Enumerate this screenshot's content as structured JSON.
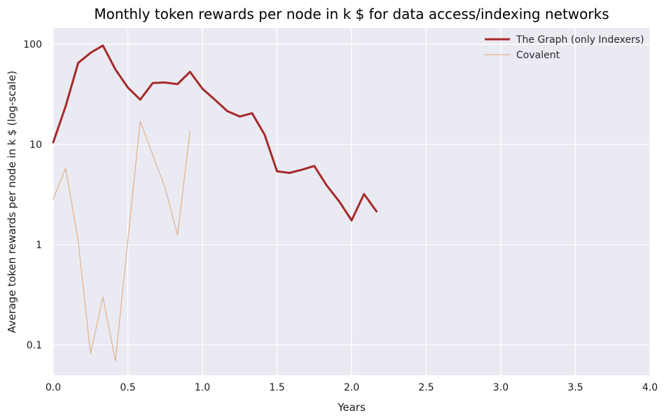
{
  "chart_data": {
    "type": "line",
    "title": "Monthly token rewards per node in k $ for data access/indexing networks",
    "xlabel": "Years",
    "ylabel": "Average token rewards per node in k $ (log-scale)",
    "xlim": [
      0,
      4
    ],
    "ylim": [
      0.05,
      145
    ],
    "yscale": "log",
    "grid": true,
    "legend_position": "top-right",
    "x_ticks": [
      0,
      0.5,
      1,
      1.5,
      2,
      2.5,
      3,
      3.5,
      4
    ],
    "x_tick_labels": [
      "0.0",
      "0.5",
      "1.0",
      "1.5",
      "2.0",
      "2.5",
      "3.0",
      "3.5",
      "4.0"
    ],
    "y_ticks": [
      0.1,
      1,
      10,
      100
    ],
    "y_tick_labels": [
      "0.1",
      "1",
      "10",
      "100"
    ],
    "series": [
      {
        "name": "The Graph (only Indexers)",
        "color": "#a52a2a",
        "line_width": "thick",
        "x": [
          0,
          0.083,
          0.167,
          0.25,
          0.333,
          0.417,
          0.5,
          0.583,
          0.667,
          0.75,
          0.833,
          0.917,
          1.0,
          1.083,
          1.167,
          1.25,
          1.333,
          1.417,
          1.5,
          1.583,
          1.667,
          1.75,
          1.833,
          1.917,
          2.0,
          2.083,
          2.167
        ],
        "y": [
          10.5,
          24,
          65,
          82,
          97,
          56,
          37,
          28,
          41,
          41.5,
          40,
          53,
          36,
          28,
          21.5,
          19,
          20.5,
          12.5,
          5.4,
          5.2,
          5.6,
          6.1,
          3.9,
          2.7,
          1.75,
          3.2,
          2.15
        ]
      },
      {
        "name": "Covalent",
        "color": "#deb18e",
        "line_width": "thin",
        "x": [
          0,
          0.083,
          0.167,
          0.25,
          0.333,
          0.417,
          0.5,
          0.583,
          0.667,
          0.75,
          0.833,
          0.917
        ],
        "y": [
          2.85,
          5.8,
          1.1,
          0.082,
          0.3,
          0.069,
          1.1,
          17,
          7.9,
          3.7,
          1.25,
          13.5
        ]
      }
    ]
  }
}
